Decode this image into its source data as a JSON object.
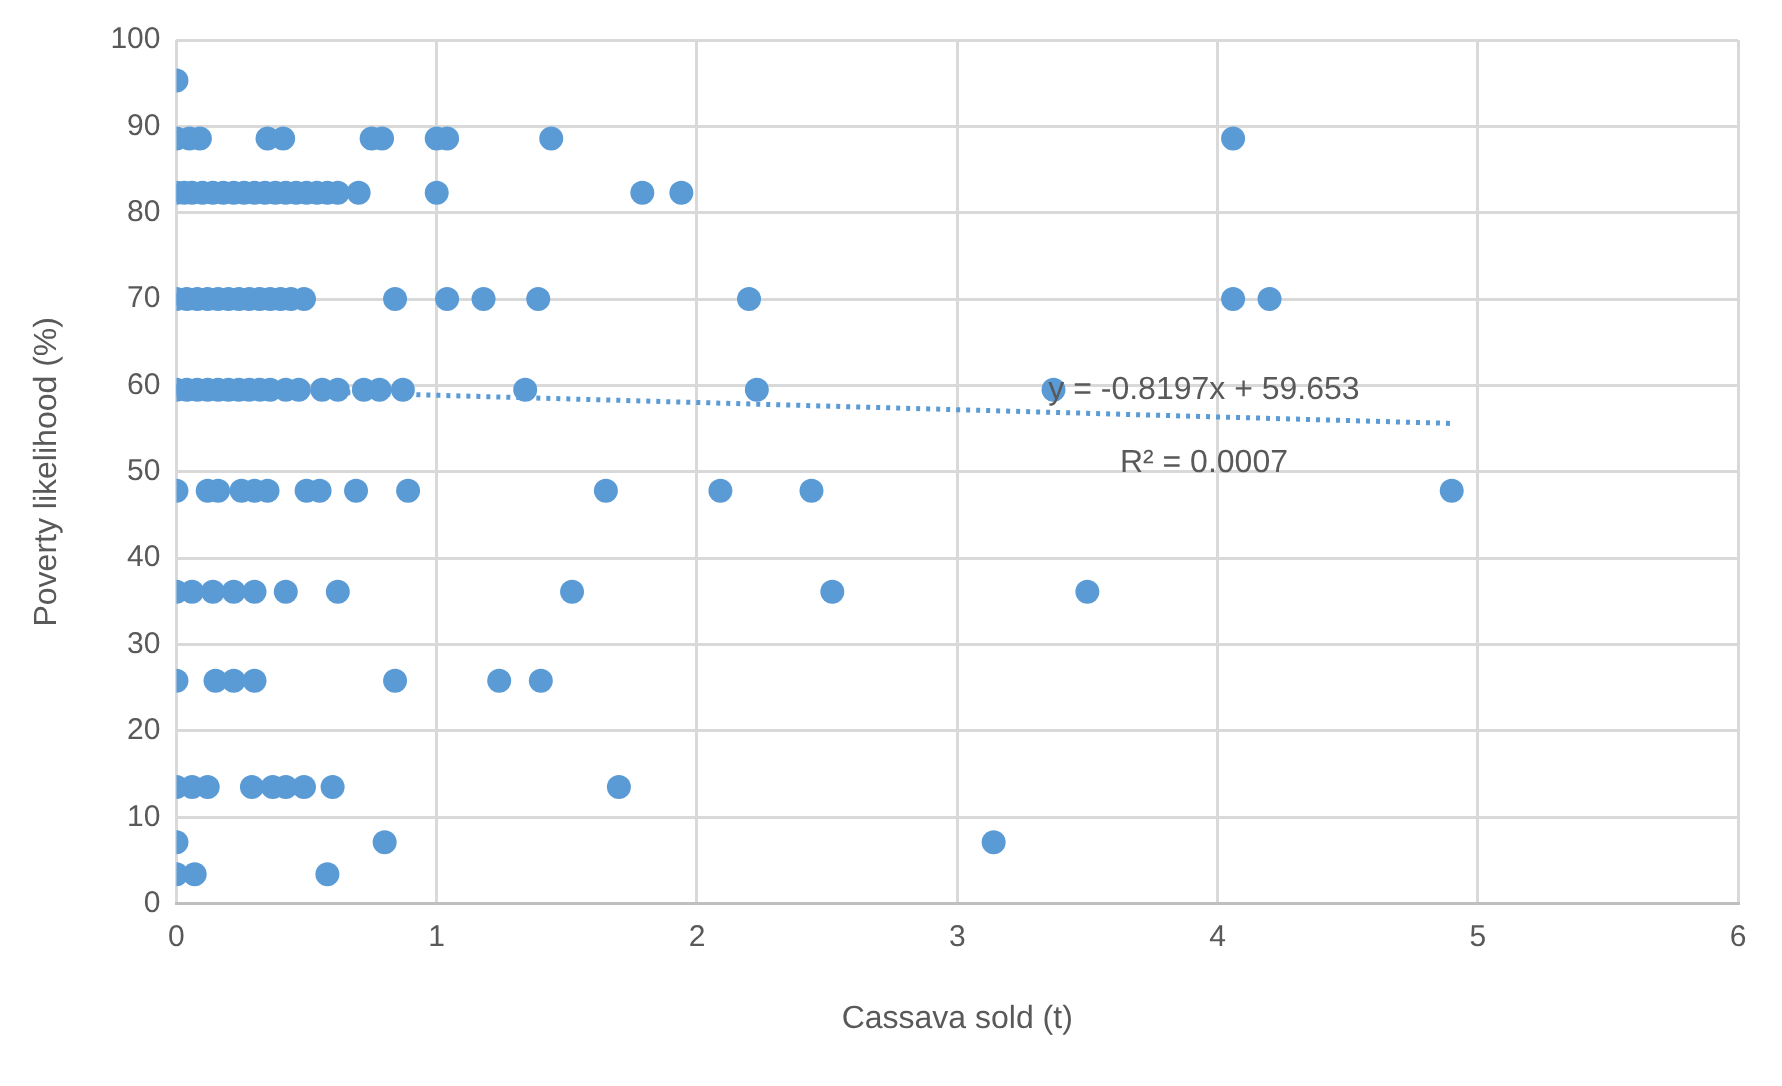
{
  "chart_data": {
    "type": "scatter",
    "xlabel": "Cassava sold (t)",
    "ylabel": "Poverty likelihood (%)",
    "xlim": [
      0,
      6
    ],
    "xticks": [
      0,
      1,
      2,
      3,
      4,
      5,
      6
    ],
    "ylim": [
      0,
      100
    ],
    "yticks": [
      0,
      10,
      20,
      30,
      40,
      50,
      60,
      70,
      80,
      90,
      100
    ],
    "grid": true,
    "legend": false,
    "marker": "circle",
    "annotations": [
      "y = -0.8197x + 59.653",
      "R² = 0.0007"
    ],
    "series": [
      {
        "type": "scatter",
        "color": "#5b9bd5",
        "x": [
          0,
          0,
          0.05,
          0.09,
          0.35,
          0.41,
          0.75,
          0.79,
          1.0,
          1.04,
          1.44,
          4.06,
          0,
          0.03,
          0.06,
          0.1,
          0.14,
          0.18,
          0.22,
          0.26,
          0.3,
          0.34,
          0.38,
          0.42,
          0.46,
          0.5,
          0.54,
          0.58,
          0.62,
          0.7,
          1.0,
          1.79,
          1.94,
          0,
          0.04,
          0.08,
          0.12,
          0.16,
          0.2,
          0.24,
          0.28,
          0.32,
          0.36,
          0.4,
          0.44,
          0.49,
          0.84,
          1.04,
          1.18,
          1.39,
          2.2,
          4.06,
          4.2,
          0,
          0.04,
          0.08,
          0.12,
          0.16,
          0.2,
          0.24,
          0.28,
          0.32,
          0.36,
          0.42,
          0.47,
          0.56,
          0.62,
          0.72,
          0.78,
          0.87,
          1.34,
          2.23,
          3.37,
          0,
          0.12,
          0.16,
          0.25,
          0.3,
          0.35,
          0.5,
          0.55,
          0.69,
          0.89,
          1.65,
          2.09,
          2.44,
          4.9,
          0,
          0.06,
          0.14,
          0.22,
          0.3,
          0.42,
          0.62,
          1.52,
          2.52,
          3.5,
          0,
          0.15,
          0.22,
          0.3,
          0.84,
          1.24,
          1.4,
          0,
          0.06,
          0.12,
          0.29,
          0.37,
          0.42,
          0.49,
          0.6,
          1.7,
          0,
          0.8,
          3.14,
          0,
          0.07,
          0.58
        ],
        "values": [
          95.3,
          88.6,
          88.6,
          88.6,
          88.6,
          88.6,
          88.6,
          88.6,
          88.6,
          88.6,
          88.6,
          88.6,
          82.3,
          82.3,
          82.3,
          82.3,
          82.3,
          82.3,
          82.3,
          82.3,
          82.3,
          82.3,
          82.3,
          82.3,
          82.3,
          82.3,
          82.3,
          82.3,
          82.3,
          82.3,
          82.3,
          82.3,
          82.3,
          70,
          70,
          70,
          70,
          70,
          70,
          70,
          70,
          70,
          70,
          70,
          70,
          70,
          70,
          70,
          70,
          70,
          70,
          70,
          70,
          59.5,
          59.5,
          59.5,
          59.5,
          59.5,
          59.5,
          59.5,
          59.5,
          59.5,
          59.5,
          59.5,
          59.5,
          59.5,
          59.5,
          59.5,
          59.5,
          59.5,
          59.5,
          59.5,
          59.5,
          47.8,
          47.8,
          47.8,
          47.8,
          47.8,
          47.8,
          47.8,
          47.8,
          47.8,
          47.8,
          47.8,
          47.8,
          47.8,
          47.8,
          36.1,
          36.1,
          36.1,
          36.1,
          36.1,
          36.1,
          36.1,
          36.1,
          36.1,
          36.1,
          25.8,
          25.8,
          25.8,
          25.8,
          25.8,
          25.8,
          25.8,
          13.5,
          13.5,
          13.5,
          13.5,
          13.5,
          13.5,
          13.5,
          13.5,
          13.5,
          7.1,
          7.1,
          7.1,
          3.4,
          3.4,
          3.4
        ]
      },
      {
        "type": "line",
        "color": "#5b9bd5",
        "line_style": "dotted",
        "marker": "none",
        "x": [
          0,
          4.9
        ],
        "values": [
          59.7,
          55.6
        ]
      }
    ]
  }
}
